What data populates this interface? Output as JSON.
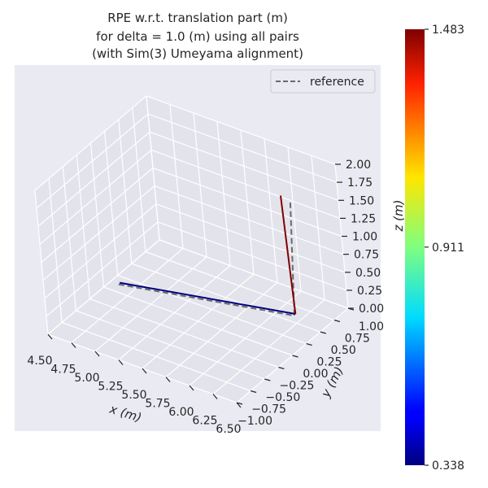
{
  "chart_data": {
    "type": "line",
    "projection": "3d",
    "title_lines": [
      "RPE w.r.t. translation part (m)",
      "for delta = 1.0 (m) using all pairs",
      "(with Sim(3) Umeyama alignment)"
    ],
    "xlabel": "x (m)",
    "ylabel": "y (m)",
    "zlabel": "z (m)",
    "xlim": [
      4.5,
      6.5
    ],
    "ylim": [
      -1.0,
      1.0
    ],
    "zlim": [
      0.0,
      2.0
    ],
    "xticks": [
      "4.50",
      "4.75",
      "5.00",
      "5.25",
      "5.50",
      "5.75",
      "6.00",
      "6.25",
      "6.50"
    ],
    "yticks": [
      "−1.00",
      "−0.75",
      "−0.50",
      "−0.25",
      "0.00",
      "0.25",
      "0.50",
      "0.75",
      "1.00"
    ],
    "zticks": [
      "0.00",
      "0.25",
      "0.50",
      "0.75",
      "1.00",
      "1.25",
      "1.50",
      "1.75",
      "2.00"
    ],
    "grid": true,
    "legend": {
      "position": "top-right",
      "entries": [
        {
          "label": "reference",
          "style": "dashed",
          "color": "#6b6b6b"
        }
      ]
    },
    "series": [
      {
        "role": "reference",
        "style": "dashed",
        "color": "#6b6b6b",
        "points": [
          [
            4.6,
            0.1,
            0.02
          ],
          [
            6.2,
            0.55,
            0.05
          ],
          [
            6.3,
            0.5,
            1.7
          ]
        ]
      },
      {
        "role": "estimate",
        "style": "solid",
        "colored_by_error": true,
        "segments": [
          {
            "points": [
              [
                4.6,
                0.12,
                0.03
              ],
              [
                6.2,
                0.57,
                0.06
              ]
            ],
            "error": 0.338
          },
          {
            "points": [
              [
                6.2,
                0.57,
                0.06
              ],
              [
                6.2,
                0.5,
                1.75
              ]
            ],
            "error": 1.483
          }
        ]
      }
    ],
    "colorbar": {
      "colormap": "jet",
      "min": 0.338,
      "max": 1.483,
      "tick_values": [
        0.338,
        0.911,
        1.483
      ],
      "tick_labels": [
        "0.338",
        "0.911",
        "1.483"
      ]
    }
  },
  "colors": {
    "pane": "#eaeaf2",
    "grid": "#ffffff",
    "text": "#262626"
  }
}
